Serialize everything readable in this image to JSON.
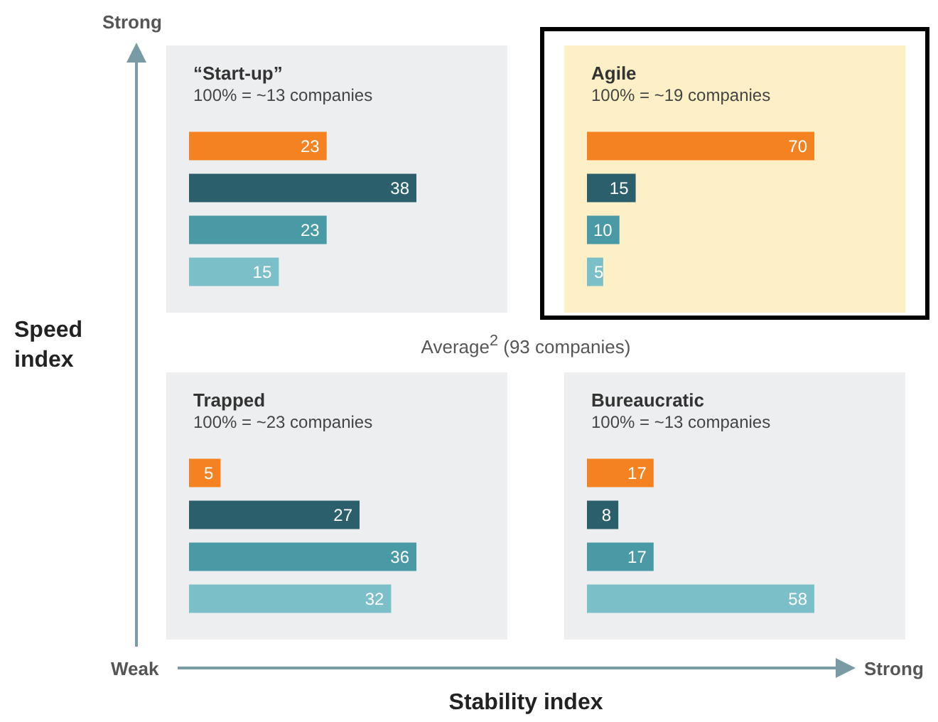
{
  "chart_data": [
    {
      "type": "bar",
      "orientation": "horizontal",
      "title": "“Start-up”",
      "subtitle": "100% = ~13 companies",
      "categories": [
        null,
        null,
        null,
        null
      ],
      "values": [
        23,
        38,
        23,
        15
      ],
      "colors": [
        "#f58220",
        "#2a5f6b",
        "#4a9aa6",
        "#7bbfc9"
      ],
      "data_labels": true
    },
    {
      "type": "bar",
      "orientation": "horizontal",
      "title": "Agile",
      "subtitle": "100% = ~19 companies",
      "categories": [
        null,
        null,
        null,
        null
      ],
      "values": [
        70,
        15,
        10,
        5
      ],
      "colors": [
        "#f58220",
        "#2a5f6b",
        "#4a9aa6",
        "#7bbfc9"
      ],
      "data_labels": true
    },
    {
      "type": "bar",
      "orientation": "horizontal",
      "title": "Trapped",
      "subtitle": "100% = ~23 companies",
      "categories": [
        null,
        null,
        null,
        null
      ],
      "values": [
        5,
        27,
        36,
        32
      ],
      "colors": [
        "#f58220",
        "#2a5f6b",
        "#4a9aa6",
        "#7bbfc9"
      ],
      "data_labels": true
    },
    {
      "type": "bar",
      "orientation": "horizontal",
      "title": "Bureaucratic",
      "subtitle": "100% = ~13 companies",
      "categories": [
        null,
        null,
        null,
        null
      ],
      "values": [
        17,
        8,
        17,
        58
      ],
      "colors": [
        "#f58220",
        "#2a5f6b",
        "#4a9aa6",
        "#7bbfc9"
      ],
      "data_labels": true
    },
    {
      "type": "other",
      "xlabel": "Stability index",
      "ylabel": "Speed index",
      "annotations": [
        "Strong",
        "Weak",
        "Strong",
        "Average$^{2}$ (93 companies)"
      ]
    }
  ]
}
